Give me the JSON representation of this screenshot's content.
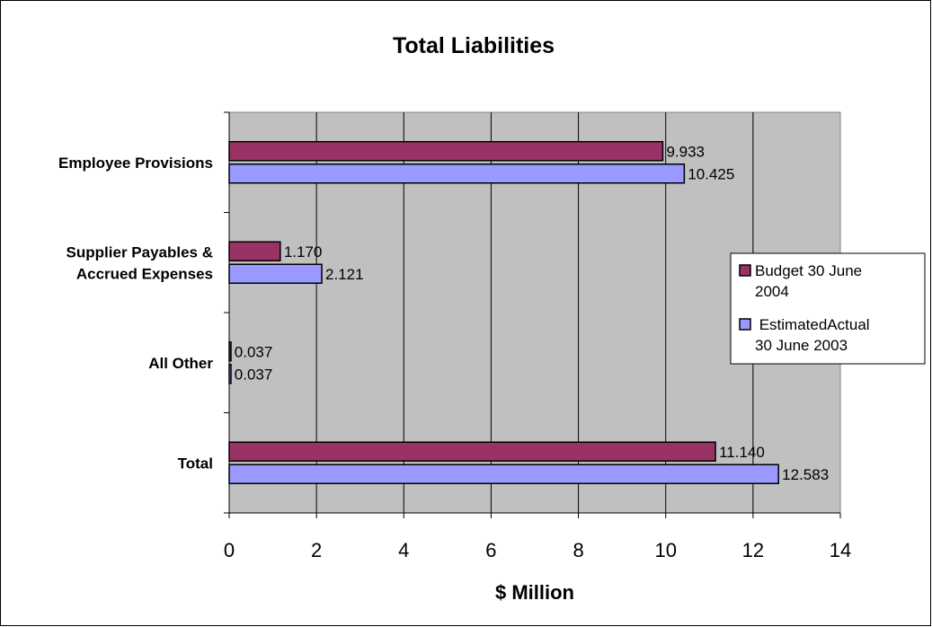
{
  "chart_data": {
    "type": "bar",
    "orientation": "horizontal",
    "title": "Total Liabilities",
    "xlabel": "$ Million",
    "ylabel": "",
    "xlim": [
      0,
      14
    ],
    "xticks": [
      "0",
      "2",
      "4",
      "6",
      "8",
      "10",
      "12",
      "14"
    ],
    "grid": "vertical major gridlines",
    "plot_background": "#c0c0c0",
    "legend_position": "right",
    "categories": [
      [
        "Employee Provisions"
      ],
      [
        "Supplier Payables &",
        "Accrued Expenses"
      ],
      [
        "All Other"
      ],
      [
        "Total"
      ]
    ],
    "series": [
      {
        "name": [
          "Budget 30 June",
          "2004"
        ],
        "color": "#993366",
        "values": [
          9.933,
          1.17,
          0.037,
          11.14
        ],
        "labels": [
          "9.933",
          "1.170",
          "0.037",
          "11.140"
        ]
      },
      {
        "name": [
          " EstimatedActual",
          "30 June 2003"
        ],
        "color": "#9999ff",
        "values": [
          10.425,
          2.121,
          0.037,
          12.583
        ],
        "labels": [
          "10.425",
          "2.121",
          "0.037",
          "12.583"
        ]
      }
    ]
  }
}
